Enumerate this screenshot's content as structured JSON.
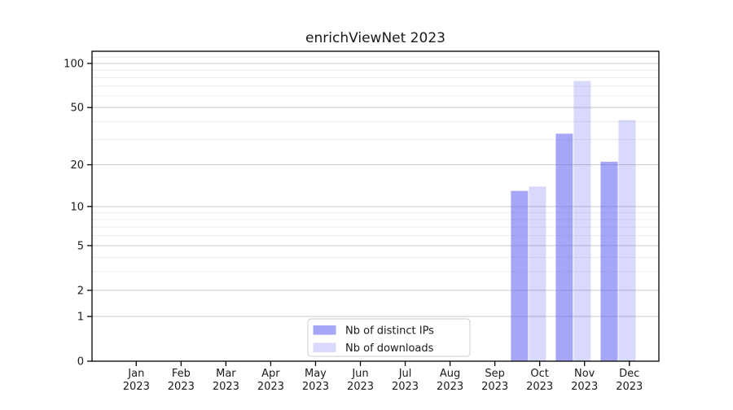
{
  "title": "enrichViewNet 2023",
  "chart_data": {
    "type": "bar",
    "title": "enrichViewNet 2023",
    "categories": [
      "Jan",
      "Feb",
      "Mar",
      "Apr",
      "May",
      "Jun",
      "Jul",
      "Aug",
      "Sep",
      "Oct",
      "Nov",
      "Dec"
    ],
    "category_year": "2023",
    "series": [
      {
        "name": "Nb of distinct IPs",
        "color": "rgba(98,98,241,0.57)",
        "values": [
          0,
          0,
          0,
          0,
          0,
          0,
          0,
          0,
          0,
          13,
          33,
          21
        ]
      },
      {
        "name": "Nb of downloads",
        "color": "rgba(98,98,241,0.24)",
        "values": [
          0,
          0,
          0,
          0,
          0,
          0,
          0,
          0,
          0,
          14,
          76,
          41
        ]
      }
    ],
    "yscale": "log1p",
    "yticks_major": [
      0,
      1,
      2,
      5,
      10,
      20,
      50,
      100
    ],
    "yticks_minor": [
      3,
      4,
      6,
      7,
      8,
      9,
      30,
      40,
      60,
      70,
      80,
      90,
      110,
      120
    ],
    "ylim": [
      0,
      121
    ],
    "xlabel": "",
    "ylabel": "",
    "grid": true,
    "legend_position": "lower center",
    "colors": {
      "grid_major": "#c9c9c9",
      "grid_minor": "#ececec",
      "spine": "#000000",
      "legend_border": "#cccccc",
      "legend_bg": "#ffffff"
    }
  }
}
